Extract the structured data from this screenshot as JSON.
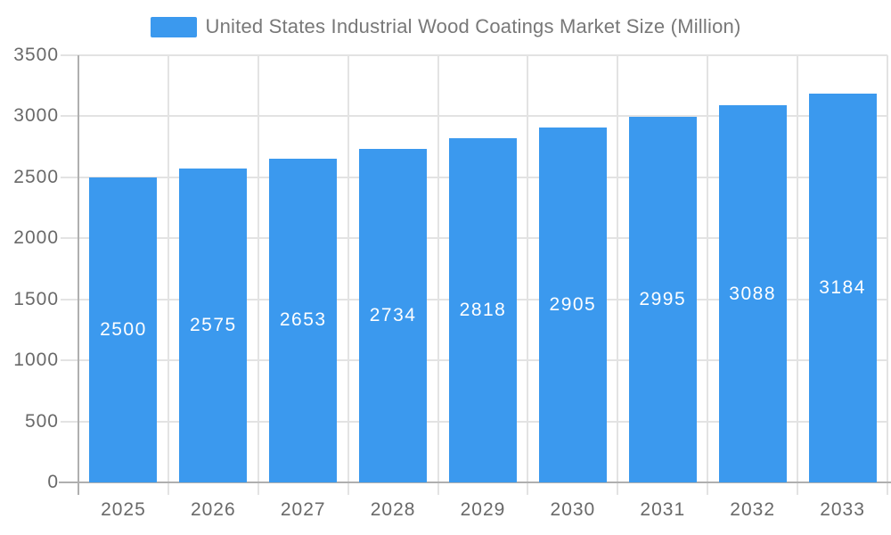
{
  "chart_data": {
    "type": "bar",
    "title": "United States Industrial Wood Coatings Market Size (Million)",
    "categories": [
      "2025",
      "2026",
      "2027",
      "2028",
      "2029",
      "2030",
      "2031",
      "2032",
      "2033"
    ],
    "values": [
      2500,
      2575,
      2653,
      2734,
      2818,
      2905,
      2995,
      3088,
      3184
    ],
    "yticks": [
      "0",
      "500",
      "1000",
      "1500",
      "2000",
      "2500",
      "3000",
      "3500"
    ],
    "ylim": [
      0,
      3500
    ],
    "xlabel": "",
    "ylabel": "",
    "grid": true,
    "legend_position": "top-center",
    "value_labels": "inside-middle",
    "colors": {
      "bar": "#3B99EE",
      "grid_line": "#E3E3E3",
      "axis_line": "#AFAFAF",
      "tick_text": "#696969",
      "legend_text": "#787878",
      "value_label": "#FFFFFF",
      "background": "#FFFFFF"
    }
  }
}
